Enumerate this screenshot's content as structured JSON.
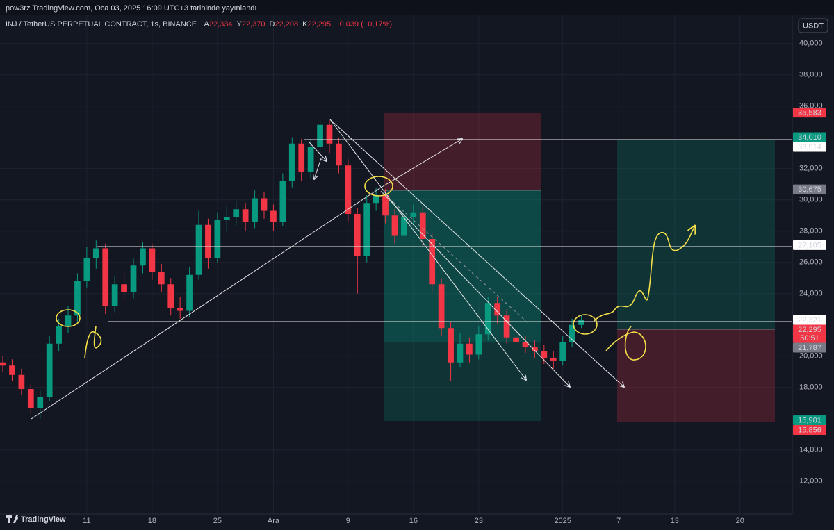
{
  "header": {
    "publisher": "pow3rz TradingView.com, Oca 03, 2025 16:09 UTC+3 tarihinde yayınlandı",
    "symbol": "INJ / TetherUS PERPETUAL CONTRACT, 1s, BINANCE",
    "ohlc": [
      {
        "key": "A",
        "value": 22.334,
        "label": "22,334"
      },
      {
        "key": "Y",
        "value": 22.37,
        "label": "22,370"
      },
      {
        "key": "D",
        "value": 22.208,
        "label": "22,208"
      },
      {
        "key": "K",
        "value": 22.295,
        "label": "22,295"
      }
    ],
    "change": "−0,039 (−0,17%)",
    "currency": "USDT"
  },
  "footer": {
    "logo": "TradingView"
  },
  "chart_data": {
    "type": "candlestick",
    "up_color": "#089981",
    "down_color": "#f23645",
    "grid": true,
    "x": [
      2,
      3,
      4,
      5,
      6,
      7,
      8,
      9,
      10,
      11,
      12,
      13,
      14,
      15,
      16,
      17,
      18,
      19,
      20,
      21,
      22,
      23,
      24,
      25,
      26,
      27,
      28,
      29,
      30,
      31,
      32,
      33,
      34,
      35,
      36,
      37,
      38,
      39,
      40,
      41,
      42,
      43,
      44,
      45,
      46,
      47,
      48,
      49,
      50,
      51,
      52,
      53,
      54,
      55,
      56,
      57,
      58,
      59,
      60,
      61,
      62,
      63,
      64
    ],
    "open": [
      19.6,
      19.4,
      18.8,
      17.9,
      16.7,
      17.4,
      20.8,
      21.9,
      22.6,
      24.8,
      26.3,
      26.9,
      23.2,
      24.6,
      24.1,
      25.8,
      26.9,
      25.4,
      24.6,
      23.1,
      22.9,
      25.2,
      28.4,
      26.3,
      28.7,
      28.9,
      29.4,
      28.6,
      30.1,
      29.3,
      28.6,
      31.2,
      33.6,
      31.8,
      33.4,
      34.8,
      33.6,
      32.2,
      29.1,
      26.4,
      29.8,
      30.3,
      29.0,
      27.7,
      28.9,
      29.2,
      27.5,
      24.6,
      21.8,
      19.6,
      20.8,
      20.1,
      21.4,
      23.4,
      22.6,
      21.2,
      20.9,
      20.6,
      20.3,
      19.9,
      19.7,
      20.9,
      22.0
    ],
    "high": [
      20.0,
      19.8,
      19.2,
      18.2,
      17.8,
      21.3,
      22.4,
      23.2,
      25.3,
      27.0,
      27.4,
      27.2,
      25.1,
      25.3,
      26.3,
      27.3,
      27.2,
      25.9,
      25.0,
      23.8,
      25.7,
      29.3,
      28.8,
      29.2,
      29.6,
      29.9,
      29.8,
      30.6,
      30.5,
      29.7,
      31.7,
      34.0,
      33.9,
      33.9,
      35.2,
      35.1,
      34.0,
      32.6,
      29.5,
      30.3,
      30.8,
      30.7,
      29.4,
      29.4,
      29.7,
      29.6,
      27.9,
      25.0,
      22.2,
      21.5,
      21.2,
      21.9,
      23.8,
      23.8,
      23.0,
      21.6,
      21.3,
      21.0,
      20.7,
      20.3,
      21.3,
      22.4,
      22.6
    ],
    "low": [
      19.0,
      18.4,
      17.5,
      16.3,
      16.0,
      17.1,
      20.3,
      21.5,
      22.2,
      24.4,
      25.6,
      22.7,
      22.8,
      23.5,
      23.7,
      25.3,
      24.9,
      24.1,
      22.6,
      22.4,
      22.5,
      24.9,
      25.6,
      26.0,
      28.0,
      28.3,
      28.0,
      28.2,
      28.8,
      28.0,
      28.3,
      30.8,
      31.2,
      31.4,
      32.9,
      33.0,
      31.7,
      28.6,
      24.0,
      26.0,
      29.3,
      28.5,
      27.2,
      27.3,
      28.4,
      27.0,
      24.1,
      21.3,
      18.4,
      19.3,
      19.6,
      19.8,
      21.0,
      22.1,
      20.8,
      20.4,
      20.2,
      19.9,
      19.5,
      19.2,
      19.4,
      20.6,
      21.8
    ],
    "close": [
      19.4,
      18.8,
      17.9,
      16.7,
      17.4,
      20.8,
      21.9,
      22.6,
      24.8,
      26.3,
      26.9,
      23.2,
      24.6,
      24.1,
      25.8,
      26.9,
      25.4,
      24.6,
      23.1,
      22.9,
      25.2,
      28.4,
      26.3,
      28.7,
      28.9,
      29.4,
      28.6,
      30.1,
      29.3,
      28.6,
      31.2,
      33.6,
      31.8,
      33.4,
      34.8,
      33.6,
      32.2,
      29.1,
      26.4,
      29.8,
      30.3,
      29.0,
      27.7,
      28.9,
      29.2,
      27.5,
      24.6,
      21.8,
      19.6,
      20.8,
      20.1,
      21.4,
      23.4,
      22.6,
      21.2,
      20.9,
      20.6,
      20.3,
      19.9,
      19.7,
      20.9,
      22.0,
      22.3
    ],
    "xlim": [
      1.7,
      86.6
    ],
    "xticks": [
      11,
      18,
      25,
      {
        "value": 31,
        "label": "Ara"
      },
      {
        "value": 39,
        "label": "9"
      },
      {
        "value": 46,
        "label": "16"
      },
      {
        "value": 53,
        "label": "23"
      },
      {
        "value": 62,
        "label": "2025"
      },
      {
        "value": 68,
        "label": "7"
      },
      {
        "value": 74,
        "label": "13"
      },
      {
        "value": 81,
        "label": "20"
      }
    ],
    "ylim": [
      9.9,
      41.9
    ],
    "yticks": [
      {
        "value": 12,
        "label": "12,000"
      },
      {
        "value": 14,
        "label": "14,000"
      },
      {
        "value": 18,
        "label": "18,000"
      },
      {
        "value": 20,
        "label": "20,000"
      },
      {
        "value": 24,
        "label": "24,000"
      },
      {
        "value": 26,
        "label": "26,000"
      },
      {
        "value": 28,
        "label": "28,000"
      },
      {
        "value": 30,
        "label": "30,000"
      },
      {
        "value": 32,
        "label": "32,000"
      },
      {
        "value": 36,
        "label": "36,000"
      },
      {
        "value": 38,
        "label": "38,000"
      },
      {
        "value": 40,
        "label": "40,000"
      }
    ],
    "price_labels": [
      {
        "value": 35.583,
        "label": "35,583",
        "color": "#f23645"
      },
      {
        "value": 34.01,
        "label": "34,010",
        "color": "#089981"
      },
      {
        "value": 33.914,
        "label": "33,914",
        "color": "#ffffff"
      },
      {
        "value": 30.675,
        "label": "30,675",
        "color": "#787b86"
      },
      {
        "value": 27.105,
        "label": "27,105",
        "color": "#ffffff"
      },
      {
        "value": 22.321,
        "label": "22,321",
        "color": "#ffffff"
      },
      {
        "value": 22.295,
        "label": "22,295",
        "color": "#f23645",
        "timer": "50:51"
      },
      {
        "value": 21.787,
        "label": "21,787",
        "color": "#787b86"
      },
      {
        "value": 15.901,
        "label": "15,901",
        "color": "#089981"
      },
      {
        "value": 15.856,
        "label": "15,856",
        "color": "#f23645"
      }
    ]
  }
}
